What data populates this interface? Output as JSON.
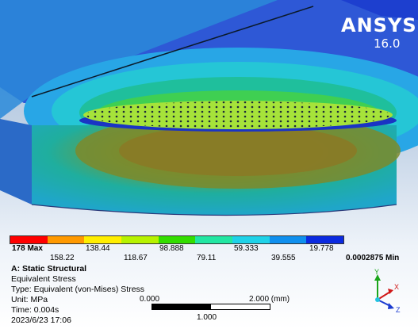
{
  "logo": {
    "brand": "ANSYS",
    "version": "16.0"
  },
  "legend": {
    "max_label": "178 Max",
    "min_label": "0.0002875 Min",
    "top_labels": [
      "138.44",
      "98.888",
      "59.333",
      "19.778"
    ],
    "bottom_labels": [
      "158.22",
      "118.67",
      "79.11",
      "39.555"
    ],
    "colors": [
      "#ff0000",
      "#ff9900",
      "#ffee00",
      "#b7f200",
      "#33dd00",
      "#22e6a2",
      "#1fd2e8",
      "#0f8fee",
      "#0b2ae0"
    ]
  },
  "result_info": {
    "analysis": "A: Static Structural",
    "result": "Equivalent Stress",
    "type": "Type: Equivalent (von-Mises) Stress",
    "unit": "Unit: MPa",
    "time": "Time: 0.004s",
    "date": "2023/6/23 17:06"
  },
  "scale": {
    "left_label": "0.000",
    "right_label": "2.000 (mm)",
    "mid_label": "1.000"
  },
  "triad": {
    "x": "X",
    "y": "Y",
    "z": "Z"
  },
  "fea_colors": {
    "outer_blue": "#1d49d8",
    "light_blue": "#2ba7e8",
    "cyan": "#25c6d6",
    "teal": "#19b79f",
    "green": "#3fcf52",
    "yellow_green": "#a6e33a",
    "deep_olive": "#7a7f25"
  }
}
